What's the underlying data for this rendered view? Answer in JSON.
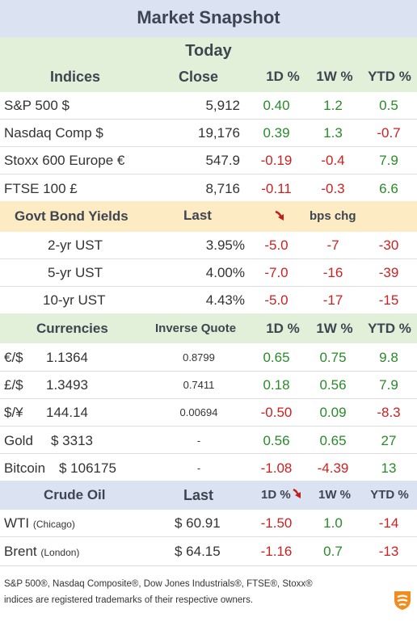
{
  "title": "Market Snapshot",
  "today_label": "Today",
  "indices": {
    "header": {
      "name": "Indices",
      "close": "Close",
      "d1": "1D %",
      "w1": "1W %",
      "ytd": "YTD %"
    },
    "rows": [
      {
        "name": "S&P 500  $",
        "close": "5,912",
        "d1": "0.40",
        "w1": "1.2",
        "ytd": "0.5"
      },
      {
        "name": "Nasdaq Comp  $",
        "close": "19,176",
        "d1": "0.39",
        "w1": "1.3",
        "ytd": "-0.7"
      },
      {
        "name": "Stoxx 600 Europe  €",
        "close": "547.9",
        "d1": "-0.19",
        "w1": "-0.4",
        "ytd": "7.9"
      },
      {
        "name": "FTSE 100  £",
        "close": "8,716",
        "d1": "-0.11",
        "w1": "-0.3",
        "ytd": "6.6"
      }
    ]
  },
  "bonds": {
    "header": {
      "name": "Govt Bond Yields",
      "last": "Last",
      "chg": "bps chg"
    },
    "rows": [
      {
        "name": "2-yr UST",
        "last": "3.95%",
        "d1": "-5.0",
        "w1": "-7",
        "ytd": "-30"
      },
      {
        "name": "5-yr UST",
        "last": "4.00%",
        "d1": "-7.0",
        "w1": "-16",
        "ytd": "-39"
      },
      {
        "name": "10-yr UST",
        "last": "4.43%",
        "d1": "-5.0",
        "w1": "-17",
        "ytd": "-15"
      }
    ]
  },
  "currencies": {
    "header": {
      "name": "Currencies",
      "inv": "Inverse Quote",
      "d1": "1D %",
      "w1": "1W %",
      "ytd": "YTD %"
    },
    "rows": [
      {
        "pair": "€/$",
        "value": "1.1364",
        "inv": "0.8799",
        "d1": "0.65",
        "w1": "0.75",
        "ytd": "9.8"
      },
      {
        "pair": "£/$",
        "value": "1.3493",
        "inv": "0.7411",
        "d1": "0.18",
        "w1": "0.56",
        "ytd": "7.9"
      },
      {
        "pair": "$/¥",
        "value": "144.14",
        "inv": "0.00694",
        "d1": "-0.50",
        "w1": "0.09",
        "ytd": "-8.3"
      },
      {
        "pair": "Gold",
        "value": "$ 3313",
        "inv": "-",
        "d1": "0.56",
        "w1": "0.65",
        "ytd": "27"
      },
      {
        "pair": "Bitcoin",
        "value": "$ 106175",
        "inv": "-",
        "d1": "-1.08",
        "w1": "-4.39",
        "ytd": "13"
      }
    ]
  },
  "oil": {
    "header": {
      "name": "Crude Oil",
      "last": "Last",
      "d1": "1D %",
      "w1": "1W %",
      "ytd": "YTD %"
    },
    "rows": [
      {
        "name": "WTI",
        "loc": "(Chicago)",
        "last": "$ 60.91",
        "d1": "-1.50",
        "w1": "1.0",
        "ytd": "-14"
      },
      {
        "name": "Brent",
        "loc": "(London)",
        "last": "$ 64.15",
        "d1": "-1.16",
        "w1": "0.7",
        "ytd": "-13"
      }
    ]
  },
  "footer": {
    "line1": "S&P 500®, Nasdaq Composite®, Dow Jones Industrials®, FTSE®, Stoxx®",
    "line2": "indices are registered trademarks of their respective owners."
  },
  "colors": {
    "positive": "#2a8a2a",
    "negative": "#d01f1f",
    "logo": "#f28c1e"
  },
  "icons": {
    "arrow": "down-arrow-icon",
    "logo": "brand-logo-icon"
  }
}
